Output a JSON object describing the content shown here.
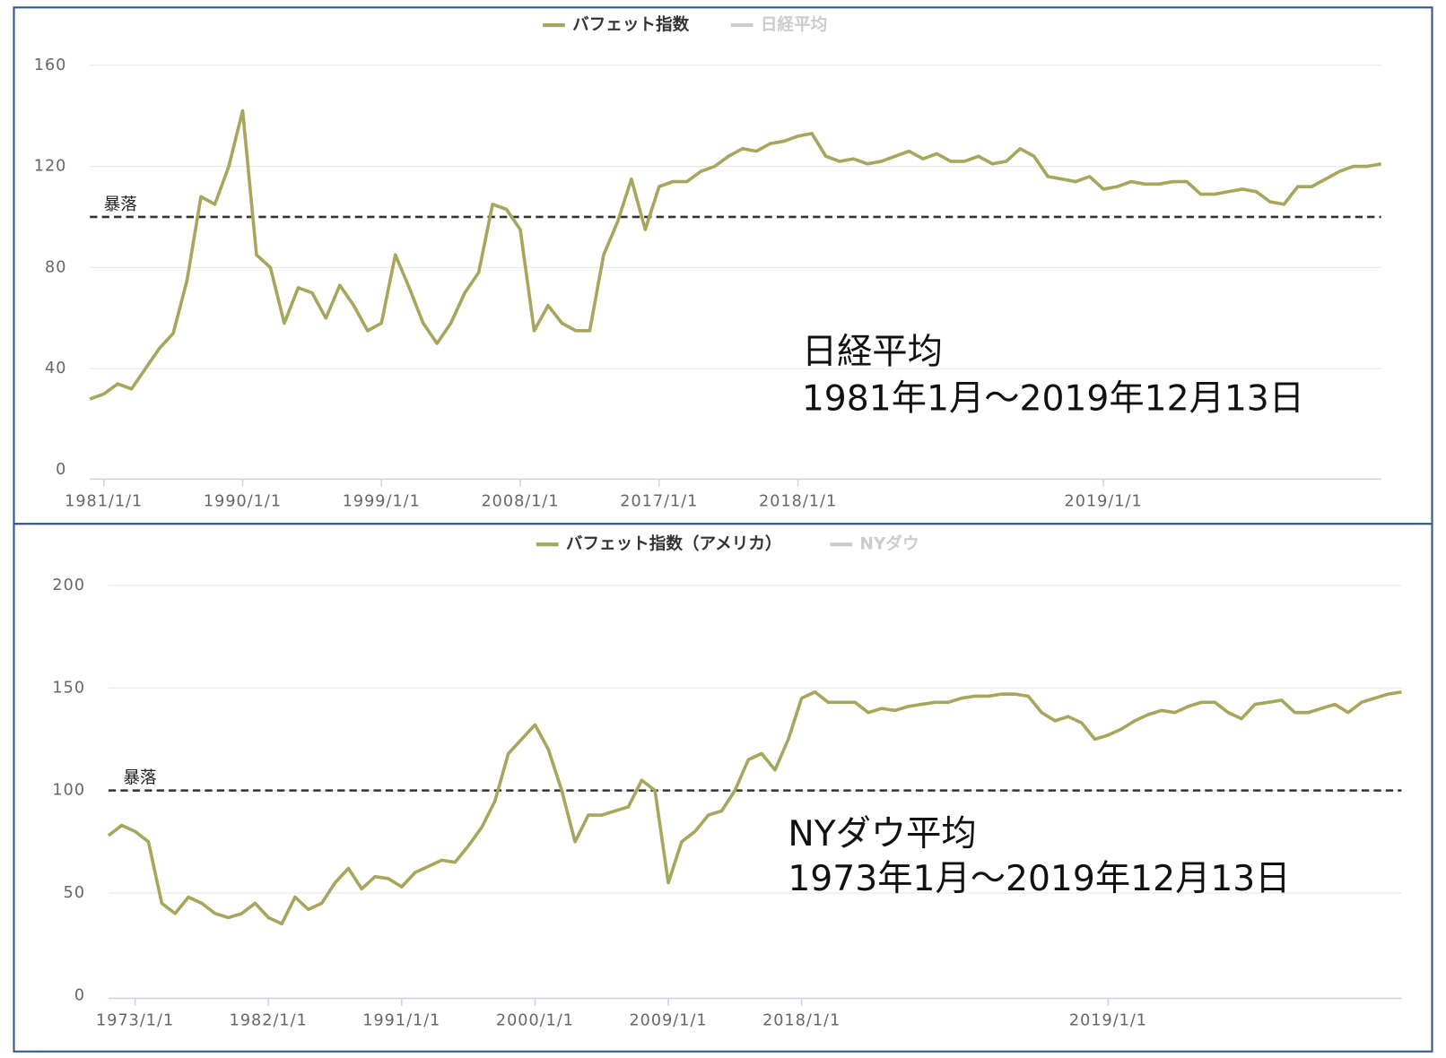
{
  "chart_data": [
    {
      "type": "line",
      "series": [
        {
          "name": "バフェット指数",
          "color": "#a8a55c",
          "values": [
            28,
            30,
            34,
            32,
            40,
            48,
            54,
            75,
            108,
            105,
            120,
            142,
            85,
            80,
            58,
            72,
            70,
            60,
            73,
            65,
            55,
            58,
            85,
            72,
            58,
            50,
            58,
            70,
            78,
            105,
            103,
            95,
            55,
            65,
            58,
            55,
            55,
            85,
            98,
            115,
            95,
            112,
            114,
            114,
            118,
            120,
            124,
            127,
            126,
            129,
            130,
            132,
            133,
            124,
            122,
            123,
            121,
            122,
            124,
            126,
            123,
            125,
            122,
            122,
            124,
            121,
            122,
            127,
            124,
            116,
            115,
            114,
            116,
            111,
            112,
            114,
            113,
            113,
            114,
            114,
            109,
            109,
            110,
            111,
            110,
            106,
            105,
            112,
            112,
            115,
            118,
            120,
            120,
            121
          ]
        }
      ],
      "hidden_series": [
        {
          "name": "日経平均",
          "color": "#cccccc"
        }
      ],
      "categories": [
        null,
        "1981/1/1",
        null,
        null,
        null,
        null,
        null,
        null,
        null,
        null,
        null,
        "1990/1/1",
        null,
        null,
        null,
        null,
        null,
        null,
        null,
        null,
        null,
        "1999/1/1",
        null,
        null,
        null,
        null,
        null,
        null,
        null,
        null,
        null,
        "2008/1/1",
        null,
        null,
        null,
        null,
        null,
        null,
        null,
        null,
        null,
        "2017/1/1",
        null,
        null,
        null,
        null,
        null,
        null,
        null,
        null,
        null,
        "2018/1/1",
        null,
        null,
        null,
        null,
        null,
        null,
        null,
        null,
        null,
        null,
        null,
        null,
        null,
        null,
        null,
        null,
        null,
        null,
        null,
        null,
        null,
        "2019/1/1",
        null,
        null,
        null,
        null,
        null,
        null,
        null,
        null,
        null,
        null,
        null,
        null,
        null,
        null,
        null,
        null,
        null,
        null,
        null,
        null
      ],
      "ylim": [
        0,
        160
      ],
      "yticks": [
        0,
        40,
        80,
        120,
        160
      ],
      "grid": true,
      "reference_line": {
        "value": 100,
        "label": "暴落"
      },
      "annotations": [
        "日経平均",
        "1981年1月～2019年12月13日"
      ]
    },
    {
      "type": "line",
      "series": [
        {
          "name": "バフェット指数（アメリカ）",
          "color": "#a8a55c",
          "values": [
            78,
            83,
            80,
            75,
            45,
            40,
            48,
            45,
            40,
            38,
            40,
            45,
            38,
            35,
            48,
            42,
            45,
            55,
            62,
            52,
            58,
            57,
            53,
            60,
            63,
            66,
            65,
            73,
            82,
            95,
            118,
            125,
            132,
            120,
            100,
            75,
            88,
            88,
            90,
            92,
            105,
            100,
            55,
            75,
            80,
            88,
            90,
            100,
            115,
            118,
            110,
            125,
            145,
            148,
            143,
            143,
            143,
            138,
            140,
            139,
            141,
            142,
            143,
            143,
            145,
            146,
            146,
            147,
            147,
            146,
            138,
            134,
            136,
            133,
            125,
            127,
            130,
            134,
            137,
            139,
            138,
            141,
            143,
            143,
            138,
            135,
            142,
            143,
            144,
            138,
            138,
            140,
            142,
            138,
            143,
            145,
            147,
            148
          ]
        }
      ],
      "hidden_series": [
        {
          "name": "NYダウ",
          "color": "#cccccc"
        }
      ],
      "categories": [
        null,
        null,
        "1973/1/1",
        null,
        null,
        null,
        null,
        null,
        null,
        null,
        null,
        null,
        "1982/1/1",
        null,
        null,
        null,
        null,
        null,
        null,
        null,
        null,
        null,
        "1991/1/1",
        null,
        null,
        null,
        null,
        null,
        null,
        null,
        null,
        null,
        "2000/1/1",
        null,
        null,
        null,
        null,
        null,
        null,
        null,
        null,
        null,
        "2009/1/1",
        null,
        null,
        null,
        null,
        null,
        null,
        null,
        null,
        null,
        "2018/1/1",
        null,
        null,
        null,
        null,
        null,
        null,
        null,
        null,
        null,
        null,
        null,
        null,
        null,
        null,
        null,
        null,
        null,
        null,
        null,
        null,
        null,
        null,
        "2019/1/1",
        null,
        null,
        null,
        null,
        null,
        null,
        null,
        null,
        null,
        null,
        null,
        null,
        null,
        null,
        null,
        null,
        null,
        null,
        null,
        null,
        null,
        null
      ],
      "ylim": [
        0,
        200
      ],
      "yticks": [
        0,
        50,
        100,
        150,
        200
      ],
      "grid": true,
      "reference_line": {
        "value": 100,
        "label": "暴落"
      },
      "annotations": [
        "NYダウ平均",
        "1973年1月～2019年12月13日"
      ]
    }
  ]
}
